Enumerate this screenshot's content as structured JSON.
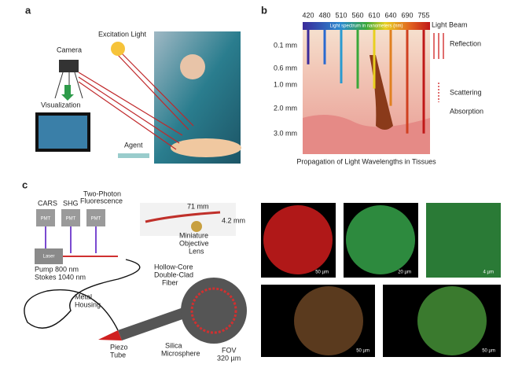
{
  "panels": {
    "a": {
      "label": "a",
      "camera": "Camera",
      "excitation": "Excitation Light",
      "visualization": "Visualization",
      "agent": "Agent"
    },
    "b": {
      "label": "b",
      "wavelengths": [
        420,
        480,
        510,
        560,
        610,
        640,
        690,
        755
      ],
      "spectrum": "Light spectrum in nanometers (nm)",
      "depths": [
        "0.1 mm",
        "0.6 mm",
        "1.0 mm",
        "2.0 mm",
        "3.0 mm"
      ],
      "light_beam": "Light Beam",
      "reflection": "Reflection",
      "scattering": "Scattering",
      "absorption": "Absorption",
      "caption": "Propagation of Light Wavelengths in Tissues"
    },
    "c": {
      "label": "c",
      "detectors": [
        "CARS",
        "SHG",
        "Two-Photon",
        "Fluorescence"
      ],
      "pmt": "PMT",
      "laser": "Laser",
      "pump": "Pump 800 nm",
      "stokes": "Stokes 1040 nm",
      "length": "71 mm",
      "diameter": "4.2 mm",
      "lens": [
        "Miniature",
        "Objective",
        "Lens"
      ],
      "fiber": [
        "Hollow-Core",
        "Double-Clad",
        "Fiber"
      ],
      "housing": [
        "Metal",
        "Housing"
      ],
      "piezo": [
        "Piezo",
        "Tube"
      ],
      "microsphere": [
        "Silica",
        "Microsphere"
      ],
      "fov": [
        "FOV",
        "320 µm"
      ],
      "scalebars": [
        "50 µm",
        "20 µm",
        "4 µm",
        "50 µm",
        "50 µm"
      ]
    }
  }
}
